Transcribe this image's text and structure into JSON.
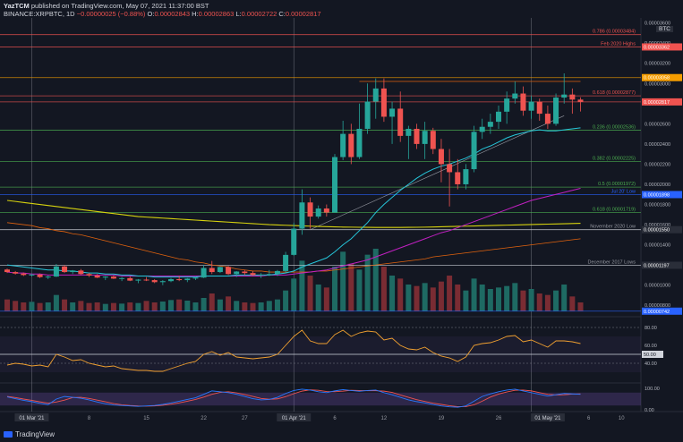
{
  "header": {
    "user": "YazTCM",
    "published": "published on TradingView.com, May 07, 2021 11:37:00 BST",
    "symbol": "BINANCE:XRPBTC, 1D",
    "change": "0.00000007",
    "change_text": "−0.00000025 (−0.88%)",
    "o_label": "O:",
    "o_val": "0.00002843",
    "h_label": "H:",
    "h_val": "0.00002863",
    "l_label": "L:",
    "l_val": "0.00002722",
    "c_label": "C:",
    "c_val": "0.00002817"
  },
  "scale_unit": "BTC",
  "logo_text": "TradingView",
  "colors": {
    "background": "#131722",
    "up": "#26a69a",
    "down": "#ef5350",
    "vol_up": "#1e6a63",
    "vol_down": "#7a2c33",
    "sma20": "#26c6da",
    "sma50": "#c020c0",
    "sma100": "#e0620e",
    "sma200": "#d6d20e",
    "rsi": "#f0a030",
    "stoch_k": "#2979ff",
    "stoch_d": "#ef5350"
  },
  "chart_data": {
    "type": "candlestick",
    "x_ticks": [
      "01 Mar '21",
      "8",
      "15",
      "22",
      "27",
      "01 Apr '21",
      "6",
      "12",
      "19",
      "26",
      "01 May '21",
      "6",
      "10"
    ],
    "price_axis_labels": [
      "0.00003600",
      "0.00003400",
      "0.00003200",
      "0.00003000",
      "0.00002800",
      "0.00002600",
      "0.00002400",
      "0.00002200",
      "0.00002000",
      "0.00001800",
      "0.00001600",
      "0.00001400",
      "0.00001200",
      "0.00001000",
      "0.00000800"
    ],
    "ylim": [
      7.4e-06,
      3.65e-05
    ],
    "levels": [
      {
        "name": "0.786 (0.00003484)",
        "value": 3.484e-05,
        "color": "#ef5350",
        "axis": ""
      },
      {
        "name": "Feb 2020 Highs",
        "value": 3.362e-05,
        "color": "#ef5350",
        "axis": "0.00003362"
      },
      {
        "name": "",
        "value": 3.058e-05,
        "color": "#f59d00",
        "axis": "0.00003058"
      },
      {
        "name": "0.618 (0.00002877)",
        "value": 2.877e-05,
        "color": "#ef5350",
        "axis": ""
      },
      {
        "name": "",
        "value": 2.817e-05,
        "color": "#ef5350",
        "axis": "0.00002817"
      },
      {
        "name": "0.236 (0.00002536)",
        "value": 2.536e-05,
        "color": "#4caf50",
        "axis": ""
      },
      {
        "name": "0.382 (0.00002225)",
        "value": 2.225e-05,
        "color": "#4caf50",
        "axis": ""
      },
      {
        "name": "0.5 (0.00001972)",
        "value": 1.972e-05,
        "color": "#4caf50",
        "axis": ""
      },
      {
        "name": "Jul 20' Low",
        "value": 1.898e-05,
        "color": "#2962ff",
        "axis": "0.00001898"
      },
      {
        "name": "0.618 (0.00001719)",
        "value": 1.719e-05,
        "color": "#4caf50",
        "axis": ""
      },
      {
        "name": "November 2020 Low",
        "value": 1.55e-05,
        "color": "#d1d4dc",
        "axis": "0.00001550"
      },
      {
        "name": "December 2017 Lows",
        "value": 1.197e-05,
        "color": "#d1d4dc",
        "axis": "0.00001197"
      },
      {
        "name": "",
        "value": 7.42e-06,
        "color": "#2962ff",
        "axis": "0.00000742"
      }
    ],
    "candles": [
      [
        1.155,
        1.165,
        1.12,
        1.13
      ],
      [
        1.13,
        1.14,
        1.105,
        1.115
      ],
      [
        1.115,
        1.125,
        1.09,
        1.1
      ],
      [
        1.1,
        1.115,
        1.085,
        1.105
      ],
      [
        1.105,
        1.115,
        1.07,
        1.08
      ],
      [
        1.08,
        1.095,
        1.06,
        1.085
      ],
      [
        1.085,
        1.21,
        1.08,
        1.185
      ],
      [
        1.185,
        1.2,
        1.12,
        1.13
      ],
      [
        1.13,
        1.15,
        1.11,
        1.145
      ],
      [
        1.145,
        1.16,
        1.1,
        1.11
      ],
      [
        1.11,
        1.12,
        1.08,
        1.095
      ],
      [
        1.095,
        1.11,
        1.07,
        1.075
      ],
      [
        1.075,
        1.09,
        1.05,
        1.085
      ],
      [
        1.085,
        1.095,
        1.06,
        1.065
      ],
      [
        1.065,
        1.08,
        1.04,
        1.07
      ],
      [
        1.07,
        1.085,
        1.04,
        1.045
      ],
      [
        1.045,
        1.06,
        1.02,
        1.055
      ],
      [
        1.055,
        1.08,
        1.04,
        1.05
      ],
      [
        1.05,
        1.06,
        1.02,
        1.03
      ],
      [
        1.03,
        1.05,
        1.0,
        1.04
      ],
      [
        1.04,
        1.07,
        1.03,
        1.06
      ],
      [
        1.06,
        1.09,
        1.04,
        1.05
      ],
      [
        1.05,
        1.07,
        1.03,
        1.065
      ],
      [
        1.065,
        1.08,
        1.05,
        1.075
      ],
      [
        1.075,
        1.2,
        1.07,
        1.17
      ],
      [
        1.17,
        1.24,
        1.11,
        1.13
      ],
      [
        1.13,
        1.185,
        1.12,
        1.18
      ],
      [
        1.18,
        1.19,
        1.1,
        1.11
      ],
      [
        1.11,
        1.14,
        1.08,
        1.135
      ],
      [
        1.135,
        1.15,
        1.1,
        1.12
      ],
      [
        1.12,
        1.14,
        1.09,
        1.1
      ],
      [
        1.1,
        1.12,
        1.07,
        1.105
      ],
      [
        1.105,
        1.15,
        1.09,
        1.11
      ],
      [
        1.11,
        1.15,
        1.09,
        1.14
      ],
      [
        1.14,
        1.33,
        1.12,
        1.3
      ],
      [
        1.3,
        1.62,
        1.29,
        1.56
      ],
      [
        1.56,
        1.95,
        1.5,
        1.82
      ],
      [
        1.82,
        1.87,
        1.56,
        1.68
      ],
      [
        1.68,
        1.79,
        1.66,
        1.76
      ],
      [
        1.76,
        1.8,
        1.68,
        1.72
      ],
      [
        1.72,
        2.3,
        1.72,
        2.27
      ],
      [
        2.27,
        2.63,
        2.24,
        2.5
      ],
      [
        2.5,
        2.6,
        2.2,
        2.27
      ],
      [
        2.27,
        2.8,
        2.25,
        2.55
      ],
      [
        2.55,
        3.0,
        2.5,
        2.82
      ],
      [
        2.82,
        3.05,
        2.65,
        2.95
      ],
      [
        2.95,
        3.05,
        2.62,
        2.67
      ],
      [
        2.67,
        2.82,
        2.4,
        2.75
      ],
      [
        2.75,
        2.92,
        2.42,
        2.48
      ],
      [
        2.48,
        2.58,
        2.25,
        2.55
      ],
      [
        2.55,
        2.6,
        2.35,
        2.4
      ],
      [
        2.4,
        2.62,
        2.25,
        2.53
      ],
      [
        2.53,
        2.56,
        2.3,
        2.35
      ],
      [
        2.35,
        2.45,
        2.02,
        2.2
      ],
      [
        2.2,
        2.35,
        1.78,
        2.12
      ],
      [
        2.12,
        2.25,
        1.95,
        2.0
      ],
      [
        2.0,
        2.2,
        1.95,
        2.15
      ],
      [
        2.15,
        2.58,
        2.12,
        2.52
      ],
      [
        2.52,
        2.65,
        2.45,
        2.57
      ],
      [
        2.57,
        2.7,
        2.5,
        2.62
      ],
      [
        2.62,
        2.78,
        2.55,
        2.72
      ],
      [
        2.72,
        2.92,
        2.6,
        2.85
      ],
      [
        2.85,
        3.02,
        2.8,
        2.9
      ],
      [
        2.9,
        2.97,
        2.68,
        2.73
      ],
      [
        2.73,
        2.88,
        2.65,
        2.82
      ],
      [
        2.82,
        2.85,
        2.63,
        2.7
      ],
      [
        2.7,
        2.78,
        2.55,
        2.6
      ],
      [
        2.6,
        2.9,
        2.58,
        2.86
      ],
      [
        2.86,
        3.1,
        2.8,
        2.89
      ],
      [
        2.89,
        2.95,
        2.7,
        2.84
      ],
      [
        2.84,
        2.863,
        2.722,
        2.817
      ]
    ],
    "volume": [
      40,
      35,
      30,
      32,
      28,
      30,
      55,
      40,
      30,
      35,
      28,
      30,
      25,
      28,
      26,
      30,
      28,
      35,
      30,
      33,
      38,
      40,
      36,
      30,
      45,
      60,
      40,
      50,
      35,
      30,
      28,
      30,
      35,
      40,
      70,
      110,
      170,
      120,
      90,
      80,
      150,
      200,
      160,
      140,
      190,
      210,
      150,
      120,
      110,
      90,
      85,
      95,
      80,
      100,
      120,
      90,
      70,
      110,
      90,
      75,
      80,
      85,
      95,
      70,
      75,
      60,
      55,
      70,
      90,
      50,
      30
    ],
    "sma20": [
      1.2,
      1.19,
      1.18,
      1.17,
      1.16,
      1.15,
      1.15,
      1.14,
      1.14,
      1.13,
      1.12,
      1.12,
      1.11,
      1.11,
      1.1,
      1.1,
      1.09,
      1.09,
      1.08,
      1.08,
      1.08,
      1.08,
      1.08,
      1.08,
      1.09,
      1.09,
      1.09,
      1.09,
      1.1,
      1.1,
      1.1,
      1.1,
      1.1,
      1.11,
      1.12,
      1.14,
      1.18,
      1.21,
      1.24,
      1.27,
      1.33,
      1.4,
      1.46,
      1.54,
      1.62,
      1.72,
      1.8,
      1.87,
      1.94,
      2.0,
      2.06,
      2.11,
      2.15,
      2.18,
      2.2,
      2.23,
      2.26,
      2.3,
      2.35,
      2.38,
      2.42,
      2.46,
      2.49,
      2.51,
      2.53,
      2.54,
      2.53,
      2.53,
      2.54,
      2.55,
      2.56
    ],
    "sma50": [
      1.13,
      1.12,
      1.12,
      1.11,
      1.11,
      1.1,
      1.1,
      1.1,
      1.1,
      1.1,
      1.1,
      1.1,
      1.1,
      1.1,
      1.09,
      1.09,
      1.09,
      1.09,
      1.09,
      1.09,
      1.09,
      1.09,
      1.09,
      1.09,
      1.09,
      1.09,
      1.09,
      1.09,
      1.09,
      1.09,
      1.09,
      1.09,
      1.1,
      1.1,
      1.1,
      1.11,
      1.12,
      1.13,
      1.14,
      1.15,
      1.17,
      1.19,
      1.21,
      1.23,
      1.25,
      1.28,
      1.31,
      1.34,
      1.37,
      1.4,
      1.43,
      1.46,
      1.49,
      1.52,
      1.54,
      1.57,
      1.6,
      1.63,
      1.66,
      1.69,
      1.72,
      1.75,
      1.78,
      1.81,
      1.84,
      1.86,
      1.88,
      1.9,
      1.92,
      1.94,
      1.96
    ],
    "sma100": [
      1.62,
      1.61,
      1.6,
      1.59,
      1.57,
      1.56,
      1.54,
      1.53,
      1.51,
      1.5,
      1.48,
      1.46,
      1.44,
      1.42,
      1.4,
      1.38,
      1.36,
      1.34,
      1.32,
      1.3,
      1.28,
      1.26,
      1.25,
      1.23,
      1.22,
      1.2,
      1.19,
      1.18,
      1.16,
      1.15,
      1.14,
      1.14,
      1.13,
      1.13,
      1.13,
      1.13,
      1.13,
      1.13,
      1.14,
      1.14,
      1.15,
      1.16,
      1.17,
      1.18,
      1.19,
      1.2,
      1.21,
      1.22,
      1.23,
      1.24,
      1.25,
      1.26,
      1.28,
      1.29,
      1.3,
      1.31,
      1.32,
      1.33,
      1.34,
      1.35,
      1.36,
      1.37,
      1.38,
      1.39,
      1.4,
      1.41,
      1.42,
      1.43,
      1.44,
      1.45,
      1.46
    ],
    "sma200": [
      1.84,
      1.83,
      1.82,
      1.81,
      1.8,
      1.79,
      1.78,
      1.77,
      1.76,
      1.75,
      1.74,
      1.73,
      1.72,
      1.71,
      1.7,
      1.69,
      1.68,
      1.675,
      1.67,
      1.665,
      1.66,
      1.655,
      1.65,
      1.645,
      1.64,
      1.635,
      1.63,
      1.625,
      1.62,
      1.615,
      1.61,
      1.605,
      1.6,
      1.597,
      1.594,
      1.591,
      1.588,
      1.585,
      1.582,
      1.58,
      1.578,
      1.576,
      1.575,
      1.574,
      1.573,
      1.572,
      1.572,
      1.572,
      1.572,
      1.573,
      1.574,
      1.575,
      1.577,
      1.579,
      1.581,
      1.583,
      1.585,
      1.587,
      1.589,
      1.591,
      1.593,
      1.595,
      1.597,
      1.599,
      1.601,
      1.603,
      1.605,
      1.607,
      1.609,
      1.611,
      1.613
    ],
    "rsi_axis_labels": [
      "80.00",
      "60.00",
      "50.00",
      "40.00"
    ],
    "rsi": [
      38,
      40,
      39,
      37,
      38,
      36,
      50,
      47,
      43,
      44,
      40,
      38,
      36,
      37,
      34,
      33,
      32,
      32,
      31,
      31,
      34,
      37,
      40,
      42,
      50,
      53,
      49,
      52,
      47,
      46,
      45,
      46,
      47,
      50,
      60,
      70,
      77,
      65,
      62,
      62,
      72,
      77,
      70,
      74,
      76,
      75,
      66,
      68,
      60,
      56,
      55,
      58,
      52,
      48,
      46,
      42,
      47,
      60,
      62,
      63,
      66,
      70,
      71,
      64,
      66,
      62,
      58,
      65,
      65,
      64,
      62
    ],
    "stoch_axis_labels": [
      "100.00",
      "0.00"
    ],
    "stoch_k": [
      60,
      52,
      44,
      38,
      30,
      24,
      50,
      62,
      58,
      54,
      46,
      36,
      28,
      22,
      20,
      18,
      16,
      18,
      20,
      25,
      32,
      40,
      48,
      56,
      72,
      88,
      84,
      80,
      72,
      62,
      52,
      46,
      48,
      58,
      76,
      90,
      96,
      92,
      84,
      80,
      88,
      94,
      90,
      86,
      90,
      92,
      80,
      70,
      58,
      46,
      38,
      32,
      24,
      18,
      14,
      12,
      18,
      40,
      62,
      74,
      84,
      92,
      96,
      88,
      80,
      72,
      64,
      70,
      76,
      74,
      72
    ],
    "stoch_d": [
      62,
      57,
      50,
      44,
      37,
      31,
      36,
      45,
      57,
      58,
      53,
      45,
      37,
      29,
      23,
      20,
      18,
      17,
      18,
      21,
      26,
      32,
      40,
      48,
      59,
      72,
      81,
      84,
      79,
      71,
      62,
      53,
      49,
      51,
      61,
      75,
      87,
      93,
      91,
      85,
      84,
      87,
      91,
      90,
      89,
      89,
      87,
      81,
      69,
      58,
      47,
      39,
      31,
      25,
      19,
      15,
      15,
      23,
      40,
      59,
      73,
      83,
      91,
      92,
      88,
      80,
      72,
      69,
      70,
      73,
      74
    ]
  }
}
